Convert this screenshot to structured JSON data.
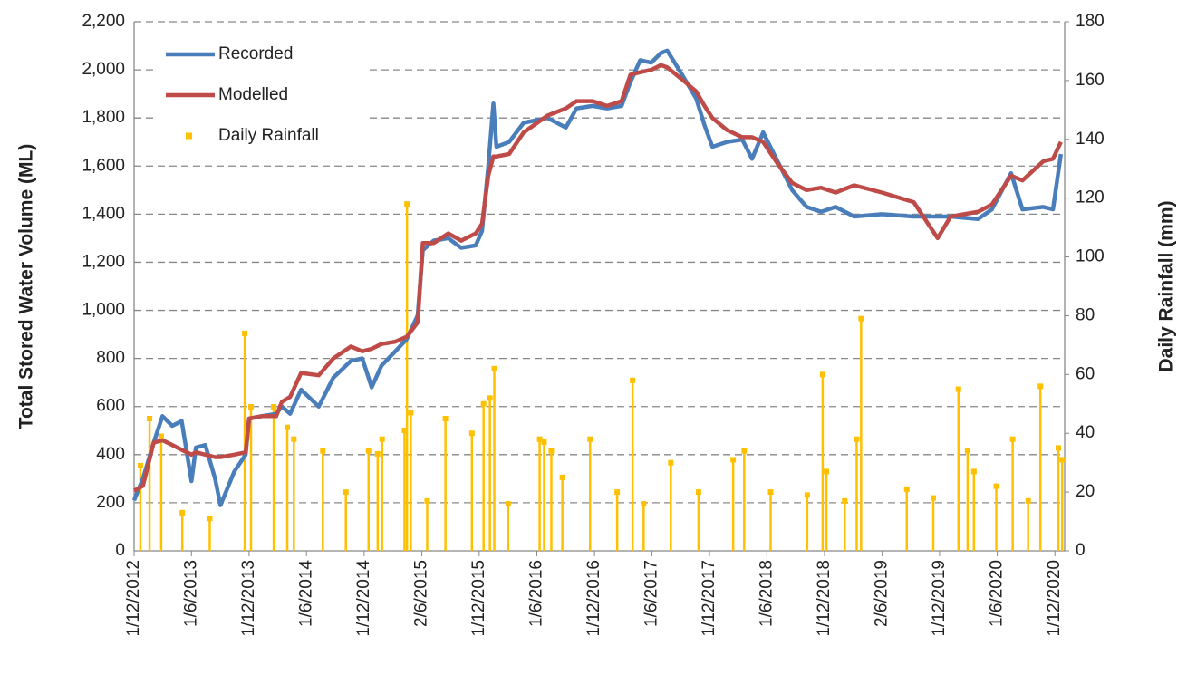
{
  "chart_data": {
    "type": "line",
    "y_label": "Total Stored Water Volume (ML)",
    "y2_label": "Daily Rainfall (mm)",
    "x": [
      "2012-12-01",
      "2012-12-29",
      "2013-02-01",
      "2013-03-01",
      "2013-04-01",
      "2013-05-01",
      "2013-06-01",
      "2013-06-15",
      "2013-07-15",
      "2013-08-15",
      "2013-09-01",
      "2013-10-15",
      "2013-11-20",
      "2013-12-01",
      "2014-01-10",
      "2014-02-25",
      "2014-03-15",
      "2014-04-10",
      "2014-05-15",
      "2014-07-10",
      "2014-08-25",
      "2014-10-20",
      "2014-11-25",
      "2014-12-25",
      "2015-01-25",
      "2015-03-10",
      "2015-04-15",
      "2015-05-20",
      "2015-06-05",
      "2015-07-10",
      "2015-08-25",
      "2015-10-05",
      "2015-11-20",
      "2015-12-10",
      "2015-12-30",
      "2016-01-15",
      "2016-01-25",
      "2016-03-05",
      "2016-04-20",
      "2016-07-05",
      "2016-09-01",
      "2016-10-05",
      "2016-11-25",
      "2017-01-10",
      "2017-02-25",
      "2017-03-25",
      "2017-04-25",
      "2017-05-30",
      "2017-06-30",
      "2017-07-20",
      "2017-09-05",
      "2017-10-20",
      "2017-11-15",
      "2017-12-10",
      "2018-01-25",
      "2018-03-15",
      "2018-04-15",
      "2018-05-20",
      "2018-07-05",
      "2018-08-20",
      "2018-10-05",
      "2018-11-20",
      "2019-01-05",
      "2019-03-05",
      "2019-06-01",
      "2019-09-10",
      "2019-11-25",
      "2020-01-05",
      "2020-04-01",
      "2020-05-15",
      "2020-07-15",
      "2020-08-20",
      "2020-10-25",
      "2020-11-25",
      "2020-12-20"
    ],
    "series": [
      {
        "name": "Recorded",
        "color": "#4a7ebb",
        "values": [
          210,
          300,
          450,
          560,
          520,
          540,
          290,
          430,
          440,
          300,
          190,
          330,
          400,
          550,
          560,
          570,
          600,
          570,
          670,
          600,
          720,
          790,
          800,
          680,
          770,
          830,
          880,
          980,
          1250,
          1290,
          1300,
          1260,
          1270,
          1330,
          1600,
          1860,
          1680,
          1700,
          1780,
          1800,
          1760,
          1840,
          1850,
          1840,
          1850,
          1950,
          2040,
          2030,
          2070,
          2080,
          1980,
          1880,
          1770,
          1680,
          1700,
          1710,
          1630,
          1740,
          1620,
          1500,
          1430,
          1410,
          1430,
          1390,
          1400,
          1390,
          1390,
          1390,
          1380,
          1420,
          1570,
          1420,
          1430,
          1420,
          1650
        ]
      },
      {
        "name": "Modelled",
        "color": "#be4b48",
        "values": [
          250,
          270,
          450,
          460,
          440,
          420,
          400,
          410,
          400,
          390,
          390,
          400,
          410,
          550,
          560,
          560,
          620,
          640,
          740,
          730,
          800,
          850,
          830,
          840,
          860,
          870,
          890,
          950,
          1280,
          1280,
          1320,
          1290,
          1320,
          1360,
          1560,
          1640,
          1640,
          1650,
          1740,
          1810,
          1840,
          1870,
          1870,
          1850,
          1870,
          1980,
          1990,
          2000,
          2020,
          2010,
          1960,
          1910,
          1850,
          1800,
          1750,
          1720,
          1720,
          1700,
          1610,
          1530,
          1500,
          1510,
          1490,
          1520,
          1490,
          1450,
          1300,
          1390,
          1410,
          1440,
          1560,
          1540,
          1620,
          1630,
          1700
        ]
      },
      {
        "name": "Daily Rainfall",
        "color": "#ffc000",
        "axis": "y2",
        "mode": "stem",
        "x": [
          "2012-12-21",
          "2013-01-19",
          "2013-02-25",
          "2013-05-03",
          "2013-07-29",
          "2013-11-17",
          "2013-12-07",
          "2014-02-17",
          "2014-04-01",
          "2014-04-22",
          "2014-07-23",
          "2014-10-04",
          "2014-12-15",
          "2015-01-13",
          "2015-01-27",
          "2015-04-08",
          "2015-04-16",
          "2015-04-28",
          "2015-06-19",
          "2015-08-16",
          "2015-11-08",
          "2015-12-15",
          "2016-01-04",
          "2016-01-18",
          "2016-03-02",
          "2016-06-10",
          "2016-06-24",
          "2016-07-17",
          "2016-08-21",
          "2016-11-17",
          "2017-02-11",
          "2017-04-01",
          "2017-05-06",
          "2017-07-31",
          "2017-10-27",
          "2018-02-14",
          "2018-03-21",
          "2018-06-13",
          "2018-10-07",
          "2018-11-25",
          "2018-12-07",
          "2019-02-03",
          "2019-03-13",
          "2019-03-27",
          "2019-08-19",
          "2019-11-11",
          "2020-01-30",
          "2020-02-28",
          "2020-03-19",
          "2020-05-29",
          "2020-07-20",
          "2020-09-07",
          "2020-10-16",
          "2020-12-12",
          "2020-12-24"
        ],
        "values": [
          29,
          45,
          39,
          13,
          11,
          74,
          49,
          49,
          42,
          38,
          34,
          20,
          34,
          33,
          38,
          41,
          118,
          47,
          17,
          45,
          40,
          50,
          52,
          62,
          16,
          38,
          37,
          34,
          25,
          38,
          20,
          58,
          16,
          30,
          20,
          31,
          34,
          20,
          19,
          60,
          27,
          17,
          38,
          79,
          21,
          18,
          55,
          34,
          27,
          22,
          38,
          17,
          56,
          35,
          31
        ]
      }
    ],
    "xlim": [
      "2012-12-01",
      "2021-01-01"
    ],
    "xticks": [
      {
        "value": "2012-12-01",
        "label": "1/12/2012"
      },
      {
        "value": "2013-06-01",
        "label": "1/6/2013"
      },
      {
        "value": "2013-12-01",
        "label": "1/12/2013"
      },
      {
        "value": "2014-06-01",
        "label": "1/6/2014"
      },
      {
        "value": "2014-12-01",
        "label": "1/12/2014"
      },
      {
        "value": "2015-06-02",
        "label": "2/6/2015"
      },
      {
        "value": "2015-12-01",
        "label": "1/12/2015"
      },
      {
        "value": "2016-06-01",
        "label": "1/6/2016"
      },
      {
        "value": "2016-12-01",
        "label": "1/12/2016"
      },
      {
        "value": "2017-06-01",
        "label": "1/6/2017"
      },
      {
        "value": "2017-12-01",
        "label": "1/12/2017"
      },
      {
        "value": "2018-06-01",
        "label": "1/6/2018"
      },
      {
        "value": "2018-12-01",
        "label": "1/12/2018"
      },
      {
        "value": "2019-06-02",
        "label": "2/6/2019"
      },
      {
        "value": "2019-12-01",
        "label": "1/12/2019"
      },
      {
        "value": "2020-06-01",
        "label": "1/6/2020"
      },
      {
        "value": "2020-12-01",
        "label": "1/12/2020"
      }
    ],
    "ylim": [
      0,
      2200
    ],
    "yticks": [
      0,
      200,
      400,
      600,
      800,
      {
        "value": 1000,
        "label": "1,000"
      },
      {
        "value": 1200,
        "label": "1,200"
      },
      {
        "value": 1400,
        "label": "1,400"
      },
      {
        "value": 1600,
        "label": "1,600"
      },
      {
        "value": 1800,
        "label": "1,800"
      },
      {
        "value": 2000,
        "label": "2,000"
      },
      {
        "value": 2200,
        "label": "2,200"
      }
    ],
    "y2lim": [
      0,
      180
    ],
    "y2ticks": [
      0,
      20,
      40,
      60,
      80,
      100,
      120,
      140,
      160,
      180
    ],
    "grid": true,
    "legend": "upper left"
  }
}
